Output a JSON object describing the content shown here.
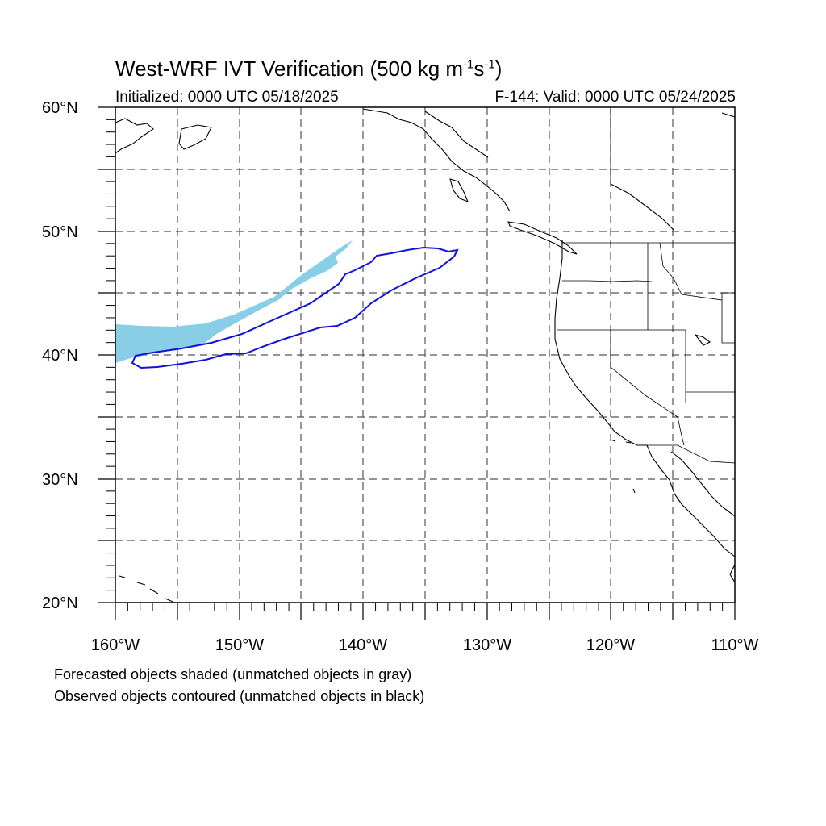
{
  "title": {
    "main": "West-WRF IVT Verification (500 kg m",
    "exp1": "-1",
    "mid": "s",
    "exp2": "-1",
    "end": ")"
  },
  "subtitle_left": "Initialized: 0000 UTC 05/18/2025",
  "subtitle_right": "F-144: Valid: 0000 UTC 05/24/2025",
  "footer": {
    "line1": "Forecasted objects shaded (unmatched objects in gray)",
    "line2": "Observed objects contoured (unmatched objects in black)"
  },
  "axes": {
    "lat_labels": [
      "60°N",
      "50°N",
      "40°N",
      "30°N",
      "20°N"
    ],
    "lon_labels": [
      "160°W",
      "150°W",
      "140°W",
      "130°W",
      "120°W",
      "110°W"
    ]
  },
  "map_extent": {
    "lon_min": -160,
    "lon_max": -110,
    "lat_min": 20,
    "lat_max": 60
  },
  "colors": {
    "forecast_fill": "#87CEE6",
    "observed_contour": "#1010E0",
    "coastline": "#000000",
    "grid": "#555555"
  }
}
